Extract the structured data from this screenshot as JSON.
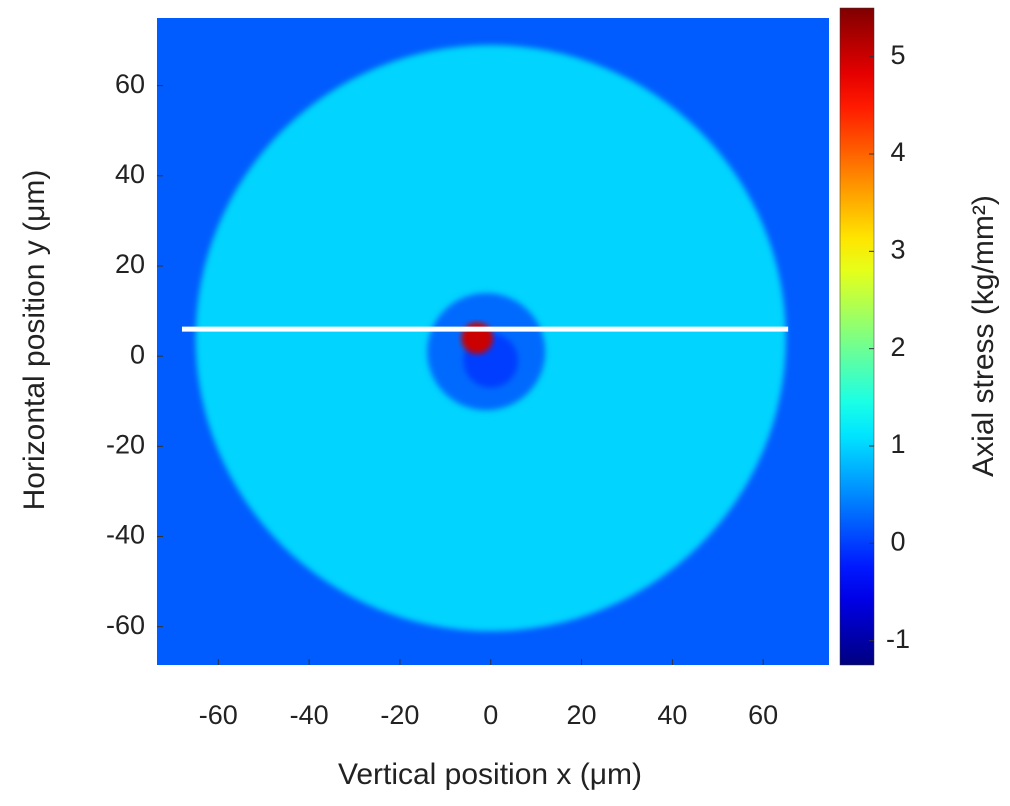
{
  "chart_data": {
    "type": "heatmap",
    "xlabel": "Vertical position x (μm)",
    "ylabel": "Horizontal position y (μm)",
    "colorbar_label": "Axial stress (kg/mm²)",
    "xlim": [
      -73.5,
      74.5
    ],
    "ylim": [
      -68.5,
      75
    ],
    "xticks": [
      -60,
      -40,
      -20,
      0,
      20,
      40,
      60
    ],
    "yticks": [
      -60,
      -40,
      -20,
      0,
      20,
      40,
      60
    ],
    "clim": [
      -1.25,
      5.5
    ],
    "cticks": [
      -1,
      0,
      1,
      2,
      3,
      4,
      5
    ],
    "colormap": "jet",
    "background_value": 0.2,
    "regions": [
      {
        "x": 0,
        "y": 4,
        "r": 65,
        "value": 1
      },
      {
        "x": -1,
        "y": 1,
        "r": 13,
        "value": 0.3
      },
      {
        "x": 0,
        "y": -1,
        "r": 6,
        "value": 0
      },
      {
        "x": -3,
        "y": 4,
        "r": 3.5,
        "value": 5
      }
    ],
    "marker_line": {
      "x": [
        -68,
        65.5
      ],
      "y": [
        6,
        6
      ],
      "color": "#ffffff"
    }
  }
}
